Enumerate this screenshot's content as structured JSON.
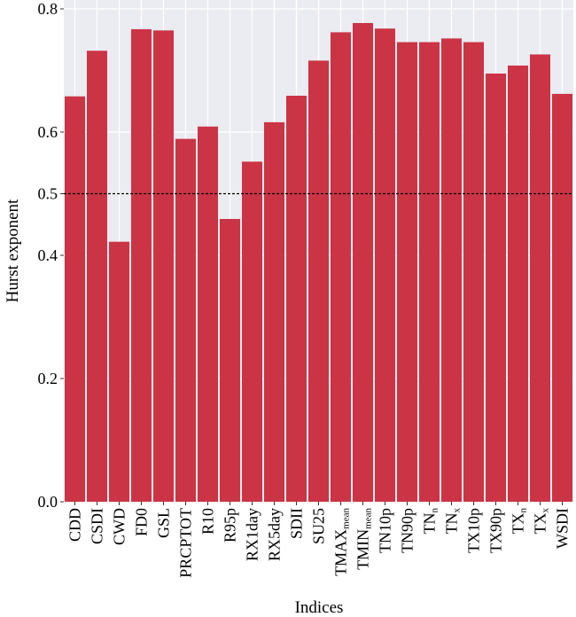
{
  "chart_data": {
    "type": "bar",
    "title": "",
    "xlabel": "Indices",
    "ylabel": "Hurst exponent",
    "ylim": [
      0,
      0.8
    ],
    "y_ticks": [
      "0.0",
      "0.2",
      "0.4",
      "0.5",
      "0.6",
      "0.8"
    ],
    "y_tick_values": [
      0.0,
      0.2,
      0.4,
      0.5,
      0.6,
      0.8
    ],
    "reference_line": {
      "y": 0.5,
      "style": "dashed"
    },
    "grid": true,
    "categories": [
      {
        "main": "CDD",
        "sub": ""
      },
      {
        "main": "CSDI",
        "sub": ""
      },
      {
        "main": "CWD",
        "sub": ""
      },
      {
        "main": "FD0",
        "sub": ""
      },
      {
        "main": "GSL",
        "sub": ""
      },
      {
        "main": "PRCPTOT",
        "sub": ""
      },
      {
        "main": "R10",
        "sub": ""
      },
      {
        "main": "R95p",
        "sub": ""
      },
      {
        "main": "RX1day",
        "sub": ""
      },
      {
        "main": "RX5day",
        "sub": ""
      },
      {
        "main": "SDII",
        "sub": ""
      },
      {
        "main": "SU25",
        "sub": ""
      },
      {
        "main": "TMAX",
        "sub": "mean"
      },
      {
        "main": "TMIN",
        "sub": "mean"
      },
      {
        "main": "TN10p",
        "sub": ""
      },
      {
        "main": "TN90p",
        "sub": ""
      },
      {
        "main": "TN",
        "sub": "n"
      },
      {
        "main": "TN",
        "sub": "x"
      },
      {
        "main": "TX10p",
        "sub": ""
      },
      {
        "main": "TX90p",
        "sub": ""
      },
      {
        "main": "TX",
        "sub": "n"
      },
      {
        "main": "TX",
        "sub": "x"
      },
      {
        "main": "WSDI",
        "sub": ""
      }
    ],
    "values": [
      0.658,
      0.732,
      0.422,
      0.767,
      0.765,
      0.589,
      0.609,
      0.459,
      0.552,
      0.616,
      0.659,
      0.716,
      0.762,
      0.777,
      0.768,
      0.746,
      0.746,
      0.752,
      0.746,
      0.695,
      0.708,
      0.726,
      0.662
    ],
    "bar_color": "#CB3444",
    "panel_color": "#EBEBF2",
    "grid_color": "#FFFFFF"
  }
}
